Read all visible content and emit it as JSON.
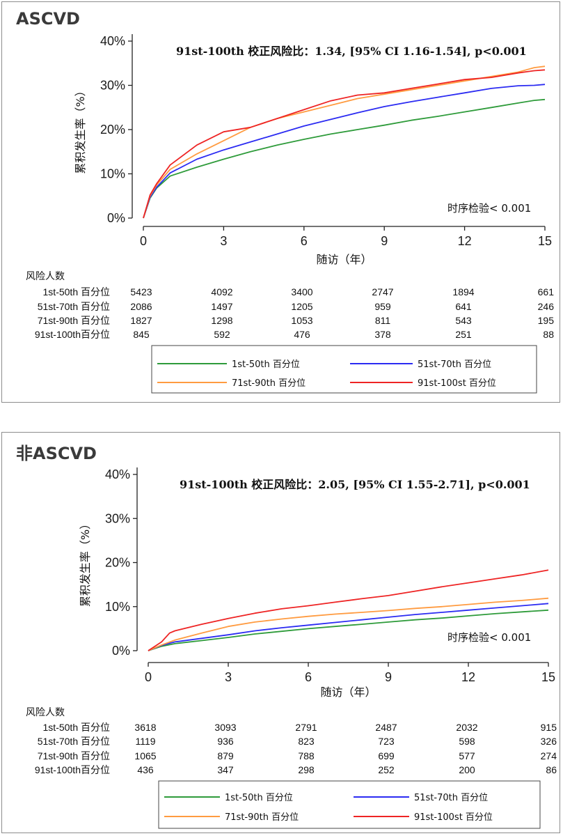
{
  "colors": {
    "g1": "#2e9b3a",
    "g2": "#2b2bf2",
    "g3": "#ff9b40",
    "g4": "#ee2424"
  },
  "chart_data": [
    {
      "type": "line",
      "panel_title": "ASCVD",
      "hr_text": "91st-100th 校正风险比：1.34,  [95% CI 1.16-1.54], p<0.001",
      "logrank_text": "时序检验< 0.001",
      "xlabel": "随访（年）",
      "ylabel": "累积发生率（%）",
      "xlim": [
        0,
        15
      ],
      "ylim": [
        0,
        40
      ],
      "xticks": [
        "0",
        "3",
        "6",
        "9",
        "12",
        "15"
      ],
      "yticks": [
        "0%",
        "10%",
        "20%",
        "30%",
        "40%"
      ],
      "risk_header": "风险人数",
      "series": [
        {
          "name": "1st-50th 百分位",
          "color": "#2e9b3a",
          "risk_label": "1st-50th 百分位",
          "risk": [
            "5423",
            "4092",
            "3400",
            "2747",
            "1894",
            "661"
          ],
          "x": [
            0,
            0.25,
            0.5,
            1,
            2,
            3,
            4,
            5,
            6,
            7,
            8,
            9,
            10,
            11,
            12,
            13,
            14,
            14.6,
            15
          ],
          "y": [
            0,
            4.5,
            6.8,
            9.5,
            11.5,
            13.3,
            15,
            16.5,
            17.8,
            19,
            20,
            21,
            22.1,
            23,
            24,
            25,
            26,
            26.6,
            26.8
          ]
        },
        {
          "name": "51st-70th 百分位",
          "color": "#2b2bf2",
          "risk_label": "51st-70th 百分位",
          "risk": [
            "2086",
            "1497",
            "1205",
            "959",
            "641",
            "246"
          ],
          "x": [
            0,
            0.25,
            0.5,
            1,
            2,
            3,
            4,
            5,
            6,
            7,
            8,
            9,
            10,
            11,
            12,
            13,
            14,
            14.6,
            15
          ],
          "y": [
            0,
            4.7,
            7,
            10.2,
            13.3,
            15.4,
            17.2,
            19,
            20.8,
            22.3,
            23.8,
            25.2,
            26.3,
            27.3,
            28.3,
            29.3,
            29.9,
            30,
            30.2
          ]
        },
        {
          "name": "71st-90th 百分位",
          "color": "#ff9b40",
          "risk_label": "71st-90th 百分位",
          "risk": [
            "1827",
            "1298",
            "1053",
            "811",
            "543",
            "195"
          ],
          "x": [
            0,
            0.25,
            0.5,
            1,
            2,
            3,
            4,
            5,
            6,
            7,
            8,
            9,
            10,
            11,
            12,
            13,
            14,
            14.6,
            15
          ],
          "y": [
            0,
            5,
            7.5,
            11,
            14.5,
            17.5,
            20.5,
            22.5,
            24,
            25.5,
            27,
            28,
            29,
            30,
            31,
            32,
            33,
            34,
            34.3
          ]
        },
        {
          "name": "91st-100st 百分位",
          "color": "#ee2424",
          "risk_label": "91st-100th百分位",
          "risk": [
            "845",
            "592",
            "476",
            "378",
            "251",
            "88"
          ],
          "x": [
            0,
            0.25,
            0.5,
            1,
            2,
            3,
            4,
            5,
            6,
            7,
            8,
            9,
            10,
            11,
            12,
            13,
            14,
            14.6,
            15
          ],
          "y": [
            0,
            5.2,
            7.8,
            12,
            16.5,
            19.5,
            20.5,
            22.5,
            24.5,
            26.5,
            27.8,
            28.3,
            29.3,
            30.3,
            31.3,
            31.8,
            32.8,
            33.3,
            33.5
          ]
        }
      ]
    },
    {
      "type": "line",
      "panel_title": "非ASCVD",
      "hr_text": "91st-100th 校正风险比：2.05,  [95% CI 1.55-2.71], p<0.001",
      "logrank_text": "时序检验< 0.001",
      "xlabel": "随访（年）",
      "ylabel": "累积发生率（%）",
      "xlim": [
        0,
        15
      ],
      "ylim": [
        0,
        40
      ],
      "xticks": [
        "0",
        "3",
        "6",
        "9",
        "12",
        "15"
      ],
      "yticks": [
        "0%",
        "10%",
        "20%",
        "30%",
        "40%"
      ],
      "risk_header": "风险人数",
      "series": [
        {
          "name": "1st-50th 百分位",
          "color": "#2e9b3a",
          "risk_label": "1st-50th 百分位",
          "risk": [
            "3618",
            "3093",
            "2791",
            "2487",
            "2032",
            "915"
          ],
          "x": [
            0,
            0.5,
            1,
            2,
            3,
            4,
            5,
            6,
            7,
            8,
            9,
            10,
            11,
            12,
            13,
            14,
            15
          ],
          "y": [
            0,
            1,
            1.6,
            2.3,
            3,
            3.8,
            4.4,
            5,
            5.5,
            6,
            6.5,
            7,
            7.4,
            7.9,
            8.4,
            8.8,
            9.2
          ]
        },
        {
          "name": "51st-70th 百分位",
          "color": "#2b2bf2",
          "risk_label": "51st-70th 百分位",
          "risk": [
            "1119",
            "936",
            "823",
            "723",
            "598",
            "326"
          ],
          "x": [
            0,
            0.5,
            1,
            2,
            3,
            4,
            5,
            6,
            7,
            8,
            9,
            10,
            11,
            12,
            13,
            14,
            15
          ],
          "y": [
            0,
            1.2,
            2,
            2.8,
            3.6,
            4.5,
            5.2,
            5.8,
            6.4,
            7,
            7.6,
            8.2,
            8.7,
            9.2,
            9.7,
            10.2,
            10.7
          ]
        },
        {
          "name": "71st-90th 百分位",
          "color": "#ff9b40",
          "risk_label": "71st-90th 百分位",
          "risk": [
            "1065",
            "879",
            "788",
            "699",
            "577",
            "274"
          ],
          "x": [
            0,
            0.5,
            1,
            2,
            3,
            4,
            5,
            6,
            7,
            8,
            9,
            10,
            11,
            12,
            13,
            14,
            15
          ],
          "y": [
            0,
            1.3,
            2.4,
            4,
            5.5,
            6.5,
            7.2,
            7.8,
            8.3,
            8.7,
            9.1,
            9.6,
            10,
            10.5,
            11,
            11.4,
            11.9
          ]
        },
        {
          "name": "91st-100st 百分位",
          "color": "#ee2424",
          "risk_label": "91st-100th百分位",
          "risk": [
            "436",
            "347",
            "298",
            "252",
            "200",
            "86"
          ],
          "x": [
            0,
            0.5,
            0.8,
            1,
            2,
            3,
            4,
            5,
            6,
            7,
            8,
            9,
            10,
            11,
            12,
            13,
            14,
            15
          ],
          "y": [
            0,
            2,
            4,
            4.5,
            6,
            7.3,
            8.5,
            9.5,
            10.2,
            11,
            11.8,
            12.5,
            13.5,
            14.5,
            15.4,
            16.3,
            17.2,
            18.3
          ]
        }
      ]
    }
  ]
}
